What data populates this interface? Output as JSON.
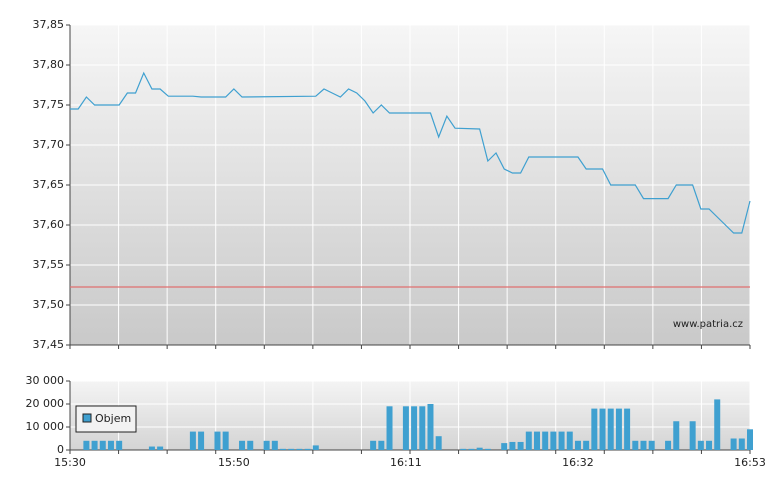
{
  "chart_data": [
    {
      "type": "line",
      "color": "#3fa0d0",
      "x": [
        "15:30",
        "15:31",
        "15:32",
        "15:33",
        "15:36",
        "15:37",
        "15:38",
        "15:39",
        "15:40",
        "15:41",
        "15:42",
        "15:45",
        "15:46",
        "15:49",
        "15:50",
        "15:51",
        "16:00",
        "16:01",
        "16:02",
        "16:03",
        "16:04",
        "16:05",
        "16:06",
        "16:07",
        "16:08",
        "16:09",
        "16:14",
        "16:15",
        "16:16",
        "16:17",
        "16:20",
        "16:21",
        "16:22",
        "16:23",
        "16:24",
        "16:25",
        "16:26",
        "16:32",
        "16:33",
        "16:35",
        "16:36",
        "16:39",
        "16:40",
        "16:43",
        "16:44",
        "16:46",
        "16:47",
        "16:48",
        "16:49",
        "16:51",
        "16:52",
        "16:53"
      ],
      "values": [
        37.745,
        37.745,
        37.76,
        37.75,
        37.75,
        37.765,
        37.765,
        37.79,
        37.77,
        37.77,
        37.761,
        37.761,
        37.76,
        37.76,
        37.77,
        37.76,
        37.761,
        37.77,
        37.765,
        37.76,
        37.77,
        37.765,
        37.755,
        37.74,
        37.75,
        37.74,
        37.74,
        37.71,
        37.736,
        37.721,
        37.72,
        37.68,
        37.69,
        37.67,
        37.665,
        37.665,
        37.685,
        37.685,
        37.67,
        37.67,
        37.65,
        37.65,
        37.633,
        37.633,
        37.65,
        37.65,
        37.62,
        37.62,
        37.61,
        37.59,
        37.59,
        37.63
      ],
      "ref_line": {
        "value": 37.5225,
        "color": "#e07070"
      },
      "xlim": [
        "15:30",
        "16:53"
      ],
      "ylim": [
        37.45,
        37.85
      ],
      "yticks": [
        {
          "value": 37.45,
          "label": "37,45"
        },
        {
          "value": 37.5,
          "label": "37,50"
        },
        {
          "value": 37.55,
          "label": "37,55"
        },
        {
          "value": 37.6,
          "label": "37,60"
        },
        {
          "value": 37.65,
          "label": "37,65"
        },
        {
          "value": 37.7,
          "label": "37,70"
        },
        {
          "value": 37.75,
          "label": "37,75"
        },
        {
          "value": 37.8,
          "label": "37,80"
        },
        {
          "value": 37.85,
          "label": "37,85"
        }
      ],
      "watermark": "www.patria.cz",
      "grid": true
    },
    {
      "type": "bar",
      "x": [
        "15:32",
        "15:33",
        "15:34",
        "15:35",
        "15:36",
        "15:40",
        "15:41",
        "15:45",
        "15:46",
        "15:48",
        "15:49",
        "15:51",
        "15:52",
        "15:54",
        "15:55",
        "15:56",
        "15:57",
        "15:58",
        "15:59",
        "16:00",
        "16:07",
        "16:08",
        "16:09",
        "16:11",
        "16:12",
        "16:13",
        "16:14",
        "16:15",
        "16:18",
        "16:19",
        "16:20",
        "16:21",
        "16:23",
        "16:24",
        "16:25",
        "16:26",
        "16:27",
        "16:28",
        "16:29",
        "16:30",
        "16:31",
        "16:32",
        "16:33",
        "16:34",
        "16:35",
        "16:36",
        "16:37",
        "16:38",
        "16:39",
        "16:40",
        "16:41",
        "16:43",
        "16:44",
        "16:46",
        "16:47",
        "16:48",
        "16:49",
        "16:51",
        "16:52",
        "16:53"
      ],
      "series": [
        {
          "name": "Objem",
          "color": "#3fa0d0",
          "values": [
            4000,
            4000,
            4000,
            4000,
            4000,
            1500,
            1500,
            8000,
            8000,
            8000,
            8000,
            4000,
            4000,
            4000,
            4000,
            500,
            500,
            500,
            500,
            2000,
            4000,
            4000,
            19000,
            19000,
            19000,
            19000,
            20000,
            6000,
            500,
            500,
            1000,
            500,
            3000,
            3500,
            3500,
            8000,
            8000,
            8000,
            8000,
            8000,
            8000,
            4000,
            4000,
            18000,
            18000,
            18000,
            18000,
            18000,
            4000,
            4000,
            4000,
            4000,
            12500,
            12500,
            4000,
            4000,
            22000,
            5000,
            5000,
            9000
          ]
        }
      ],
      "xlim": [
        "15:30",
        "16:53"
      ],
      "xticks": [
        "15:30",
        "15:50",
        "16:11",
        "16:32",
        "16:53"
      ],
      "ylim": [
        0,
        30000
      ],
      "yticks": [
        0,
        {
          "value": 10000,
          "label": "10 000"
        },
        {
          "value": 20000,
          "label": "20 000"
        },
        {
          "value": 30000,
          "label": "30 000"
        }
      ],
      "grid": true
    }
  ]
}
